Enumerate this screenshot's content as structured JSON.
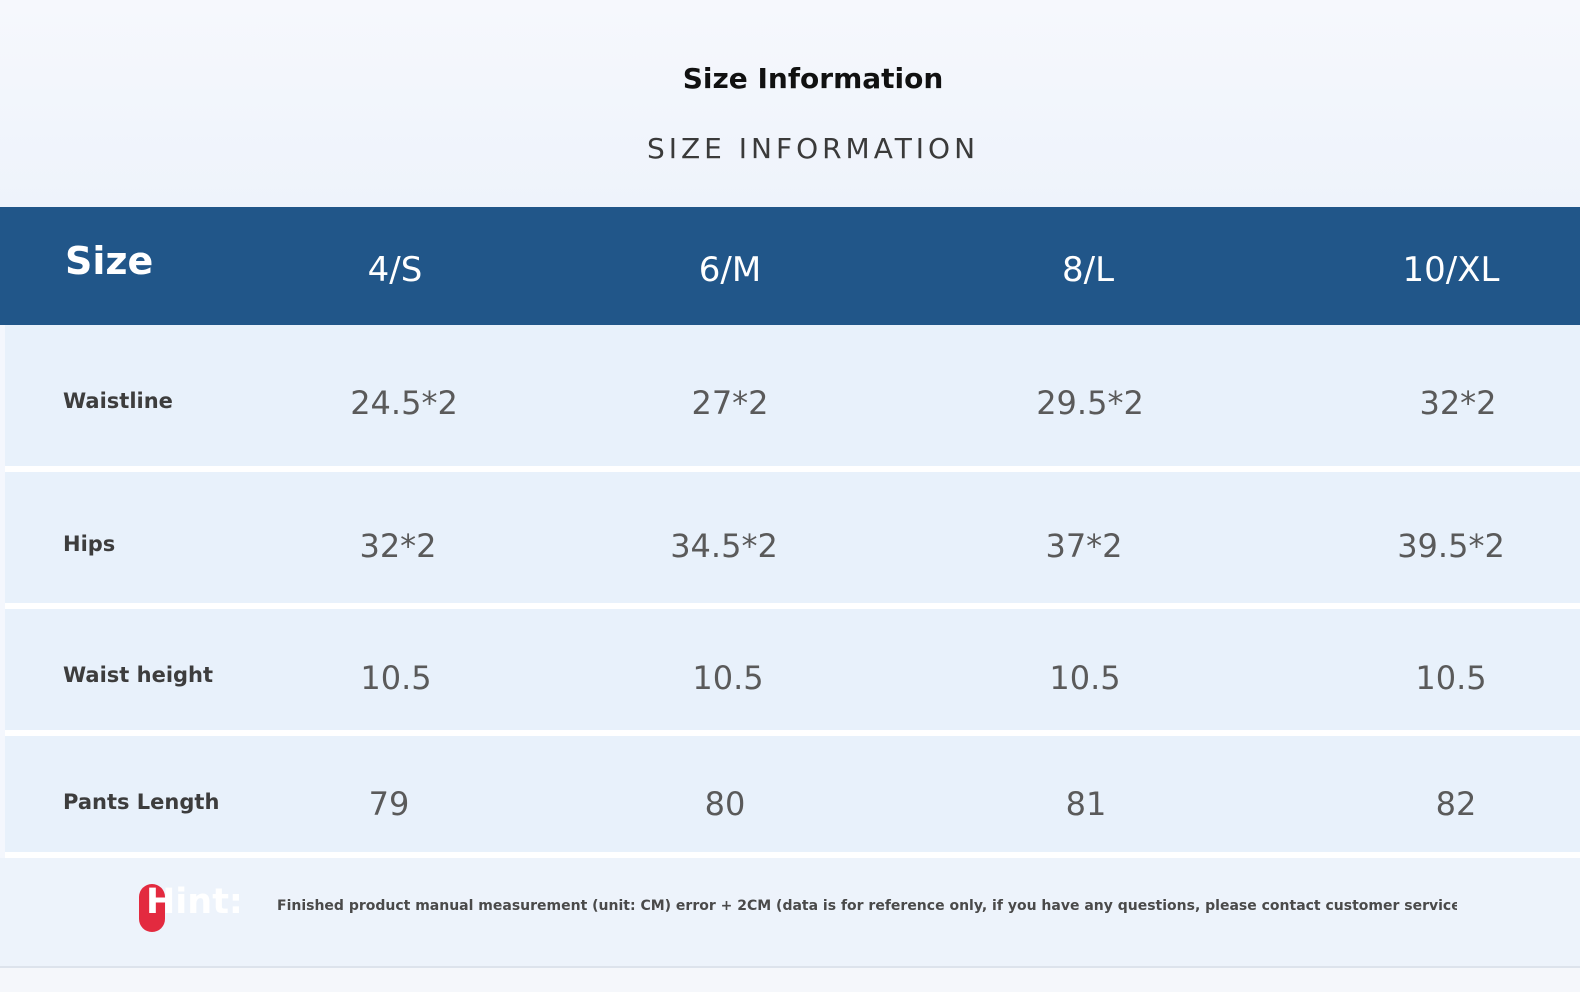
{
  "title": "Size Information",
  "subtitle": "SIZE INFORMATION",
  "table": {
    "header_label": "Size",
    "sizes": [
      "4/S",
      "6/M",
      "8/L",
      "10/XL"
    ],
    "rows": [
      {
        "label": "Waistline",
        "values": [
          "24.5*2",
          "27*2",
          "29.5*2",
          "32*2"
        ]
      },
      {
        "label": "Hips",
        "values": [
          "32*2",
          "34.5*2",
          "37*2",
          "39.5*2"
        ]
      },
      {
        "label": "Waist height",
        "values": [
          "10.5",
          "10.5",
          "10.5",
          "10.5"
        ]
      },
      {
        "label": "Pants Length",
        "values": [
          "79",
          "80",
          "81",
          "82"
        ]
      }
    ]
  },
  "hint": {
    "label": "Hint:",
    "text": "Finished product manual measurement (unit: CM) error + 2CM (data is for reference only, if you have any questions, please contact customer service in time)"
  },
  "colors": {
    "header_bg": "#215689",
    "row_bg": "#e8f1fb",
    "hint_accent": "#e32a3f"
  }
}
